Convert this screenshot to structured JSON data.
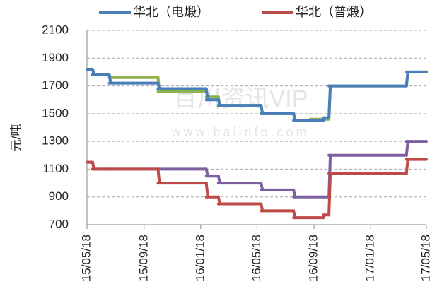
{
  "chart_data": {
    "type": "line",
    "legend": "top",
    "ylabel": "元/吨",
    "watermark": [
      "百川资讯VIP",
      "www.baiinfo.com"
    ],
    "x": [
      "15/05/18",
      "15/05/30",
      "15/07/05",
      "15/10/18",
      "16/01/30",
      "16/02/25",
      "16/05/27",
      "16/08/05",
      "16/09/10",
      "16/10/08",
      "16/10/20",
      "17/04/05",
      "17/05/18"
    ],
    "xlim": [
      "15/05/18",
      "17/05/18"
    ],
    "xticks": [
      "15/05/18",
      "15/09/18",
      "16/01/18",
      "16/05/18",
      "16/09/18",
      "17/01/18",
      "17/05/18"
    ],
    "ylim": [
      700,
      2100
    ],
    "yticks": [
      700,
      900,
      1100,
      1300,
      1500,
      1700,
      1900,
      2100
    ],
    "grid": true,
    "series": [
      {
        "name": "华北（电煅）",
        "color": "#4a7ebb",
        "values": [
          1820,
          1780,
          1720,
          1680,
          1600,
          1560,
          1500,
          1450,
          1450,
          1470,
          1700,
          1800,
          1800
        ]
      },
      {
        "name": "华北（普煅）",
        "color": "#be4b48",
        "values": [
          1150,
          1100,
          1100,
          1000,
          900,
          850,
          800,
          750,
          750,
          770,
          1070,
          1170,
          1170
        ]
      },
      {
        "color": "#8db24d",
        "values": [
          1820,
          1780,
          1760,
          1660,
          1620,
          1560,
          1500,
          1450,
          1460,
          1460,
          1700,
          1800,
          1800
        ]
      },
      {
        "color": "#7d5fa0",
        "values": [
          1150,
          1100,
          1100,
          1100,
          1050,
          1000,
          950,
          900,
          900,
          900,
          1200,
          1300,
          1300
        ]
      }
    ]
  }
}
